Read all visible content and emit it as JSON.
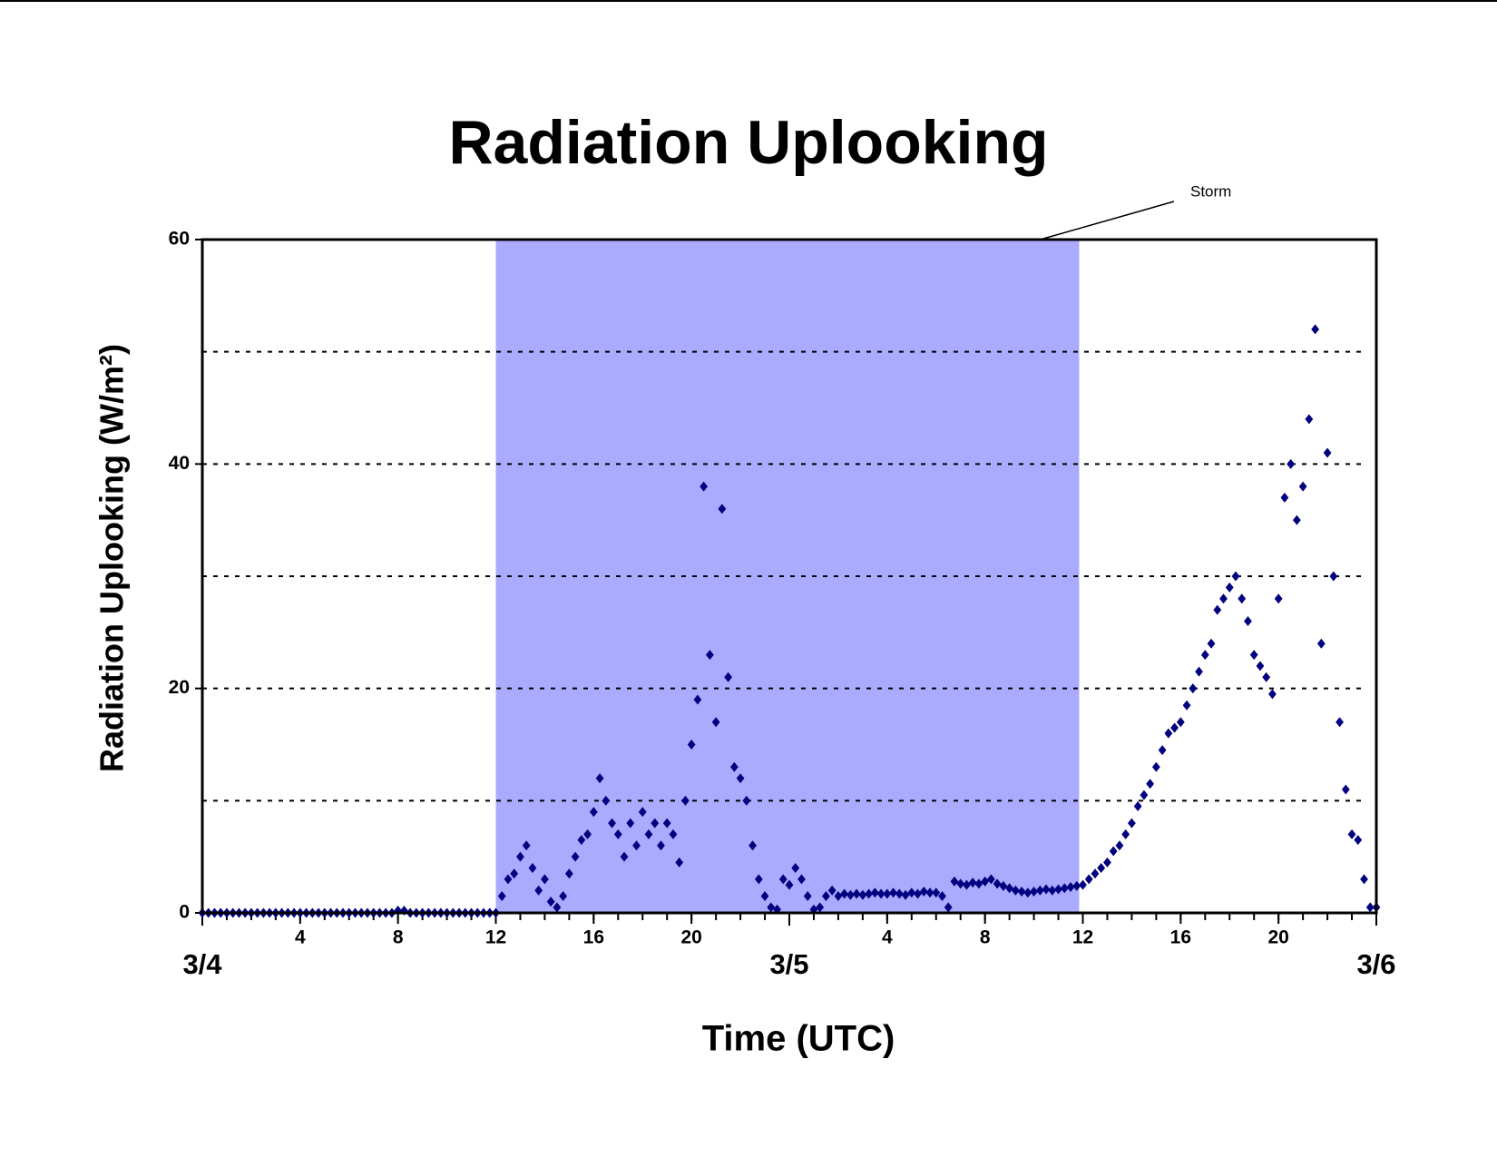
{
  "chart_data": {
    "type": "scatter",
    "title": "Radiation Uplooking",
    "xlabel": "Time (UTC)",
    "ylabel": "Radiation Uplooking (W/m²)",
    "annotation": "Storm",
    "shaded_span": [
      12,
      35.85
    ],
    "shade_color": "#aaaaff",
    "color": "#000080",
    "grid": true,
    "xlim": [
      0,
      48
    ],
    "ylim": [
      0,
      60
    ],
    "yticks": [
      0,
      20,
      40,
      60
    ],
    "ygrid": [
      10,
      20,
      30,
      40,
      50
    ],
    "xticks": [
      4,
      8,
      12,
      16,
      20,
      {
        "value": 28,
        "label": "4"
      },
      {
        "value": 32,
        "label": "8"
      },
      {
        "value": 36,
        "label": "12"
      },
      {
        "value": 40,
        "label": "16"
      },
      {
        "value": 44,
        "label": "20"
      }
    ],
    "xminorticks": [
      0,
      1,
      2,
      3,
      4,
      5,
      6,
      7,
      8,
      9,
      10,
      11,
      12,
      13,
      14,
      15,
      16,
      17,
      18,
      19,
      20,
      21,
      22,
      23,
      24,
      25,
      26,
      27,
      28,
      29,
      30,
      31,
      32,
      33,
      34,
      35,
      36,
      37,
      38,
      39,
      40,
      41,
      42,
      43,
      44,
      45,
      46,
      47,
      48
    ],
    "xday_labels": [
      {
        "value": 0,
        "label": "3/4"
      },
      {
        "value": 24,
        "label": "3/5"
      },
      {
        "value": 48,
        "label": "3/6"
      }
    ],
    "x": [
      0,
      0.25,
      0.5,
      0.75,
      1,
      1.25,
      1.5,
      1.75,
      2,
      2.25,
      2.5,
      2.75,
      3,
      3.25,
      3.5,
      3.75,
      4,
      4.25,
      4.5,
      4.75,
      5,
      5.25,
      5.5,
      5.75,
      6,
      6.25,
      6.5,
      6.75,
      7,
      7.25,
      7.5,
      7.75,
      8,
      8.25,
      8.5,
      8.75,
      9,
      9.25,
      9.5,
      9.75,
      10,
      10.25,
      10.5,
      10.75,
      11,
      11.25,
      11.5,
      11.75,
      12,
      12.25,
      12.5,
      12.75,
      13,
      13.25,
      13.5,
      13.75,
      14,
      14.25,
      14.5,
      14.75,
      15,
      15.25,
      15.5,
      15.75,
      16,
      16.25,
      16.5,
      16.75,
      17,
      17.25,
      17.5,
      17.75,
      18,
      18.25,
      18.5,
      18.75,
      19,
      19.25,
      19.5,
      19.75,
      20,
      20.25,
      20.5,
      20.75,
      21,
      21.25,
      21.5,
      21.75,
      22,
      22.25,
      22.5,
      22.75,
      23,
      23.25,
      23.5,
      23.75,
      24,
      24.25,
      24.5,
      24.75,
      25,
      25.25,
      25.5,
      25.75,
      26,
      26.25,
      26.5,
      26.75,
      27,
      27.25,
      27.5,
      27.75,
      28,
      28.25,
      28.5,
      28.75,
      29,
      29.25,
      29.5,
      29.75,
      30,
      30.25,
      30.5,
      30.75,
      31,
      31.25,
      31.5,
      31.75,
      32,
      32.25,
      32.5,
      32.75,
      33,
      33.25,
      33.5,
      33.75,
      34,
      34.25,
      34.5,
      34.75,
      35,
      35.25,
      35.5,
      35.75,
      36,
      36.25,
      36.5,
      36.75,
      37,
      37.25,
      37.5,
      37.75,
      38,
      38.25,
      38.5,
      38.75,
      39,
      39.25,
      39.5,
      39.75,
      40,
      40.25,
      40.5,
      40.75,
      41,
      41.25,
      41.5,
      41.75,
      42,
      42.25,
      42.5,
      42.75,
      43,
      43.25,
      43.5,
      43.75,
      44,
      44.25,
      44.5,
      44.75,
      45,
      45.25,
      45.5,
      45.75,
      46,
      46.25,
      46.5,
      46.75,
      47,
      47.25,
      47.5,
      47.75,
      48
    ],
    "values": [
      0,
      0,
      0,
      0,
      0,
      0,
      0,
      0,
      0,
      0,
      0,
      0,
      0,
      0,
      0,
      0,
      0,
      0,
      0,
      0,
      0,
      0,
      0,
      0,
      0,
      0,
      0,
      0,
      0,
      0,
      0,
      0,
      0.2,
      0.2,
      0,
      0,
      0,
      0,
      0,
      0,
      0,
      0,
      0,
      0,
      0,
      0,
      0,
      0,
      0,
      1.5,
      3,
      3.5,
      5,
      6,
      4,
      2,
      3,
      1,
      0.5,
      1.5,
      3.5,
      5,
      6.5,
      7,
      9,
      12,
      10,
      8,
      7,
      5,
      8,
      6,
      9,
      7,
      8,
      6,
      8,
      7,
      4.5,
      10,
      15,
      19,
      38,
      23,
      17,
      36,
      21,
      13,
      12,
      10,
      6,
      3,
      1.5,
      0.5,
      0.3,
      3,
      2.5,
      4,
      3,
      1.5,
      0.3,
      0.5,
      1.5,
      2,
      1.5,
      1.7,
      1.6,
      1.7,
      1.6,
      1.7,
      1.8,
      1.7,
      1.7,
      1.8,
      1.7,
      1.6,
      1.8,
      1.7,
      1.9,
      1.8,
      1.8,
      1.5,
      0.5,
      2.8,
      2.6,
      2.5,
      2.7,
      2.6,
      2.8,
      3,
      2.6,
      2.4,
      2.2,
      2,
      1.9,
      1.8,
      1.9,
      2,
      2.1,
      2,
      2.1,
      2.2,
      2.3,
      2.4,
      2.5,
      3,
      3.5,
      4,
      4.5,
      5.5,
      6,
      7,
      8,
      9.5,
      10.5,
      11.5,
      13,
      14.5,
      16,
      16.5,
      17,
      18.5,
      20,
      21.5,
      23,
      24,
      27,
      28,
      29,
      30,
      28,
      26,
      23,
      22,
      21,
      19.5,
      28,
      37,
      40,
      35,
      38,
      44,
      52,
      24,
      41,
      30,
      17,
      11,
      7,
      6.5,
      3,
      0.5,
      0.5
    ]
  }
}
